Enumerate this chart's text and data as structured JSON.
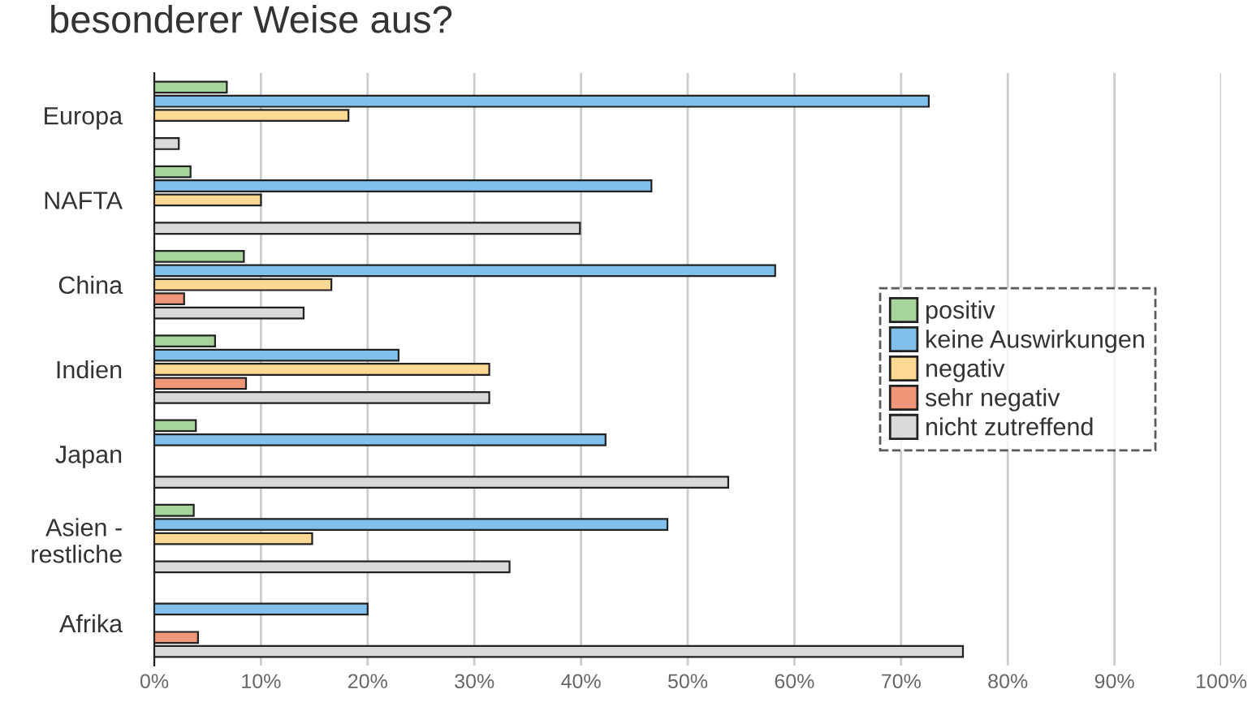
{
  "chart_data": {
    "type": "bar",
    "orientation": "horizontal",
    "title": "besonderer Weise aus?",
    "categories": [
      "Europa",
      "NAFTA",
      "China",
      "Indien",
      "Japan",
      "Asien -\nrestliche",
      "Afrika"
    ],
    "series": [
      {
        "name": "positiv",
        "color": "#a6d49a",
        "values": [
          6.8,
          3.4,
          8.4,
          5.7,
          3.9,
          3.7,
          null
        ]
      },
      {
        "name": "keine Auswirkungen",
        "color": "#80c0ea",
        "values": [
          72.6,
          46.6,
          58.2,
          22.9,
          42.3,
          48.1,
          20.0
        ]
      },
      {
        "name": "negativ",
        "color": "#fed993",
        "values": [
          18.2,
          10.0,
          16.6,
          31.4,
          null,
          14.8,
          null
        ]
      },
      {
        "name": "sehr negativ",
        "color": "#f0977a",
        "values": [
          null,
          null,
          2.8,
          8.6,
          null,
          null,
          4.1
        ]
      },
      {
        "name": "nicht zutreffend",
        "color": "#d9d9d9",
        "values": [
          2.3,
          39.9,
          14.0,
          31.4,
          53.8,
          33.3,
          75.8
        ]
      }
    ],
    "xlim": [
      0,
      100
    ],
    "xticks": [
      {
        "value": 0,
        "label": "0%"
      },
      {
        "value": 10,
        "label": "10%"
      },
      {
        "value": 20,
        "label": "20%"
      },
      {
        "value": 30,
        "label": "30%"
      },
      {
        "value": 40,
        "label": "40%"
      },
      {
        "value": 50,
        "label": "50%"
      },
      {
        "value": 60,
        "label": "60%"
      },
      {
        "value": 70,
        "label": "70%"
      },
      {
        "value": 80,
        "label": "80%"
      },
      {
        "value": 90,
        "label": "90%"
      },
      {
        "value": 100,
        "label": "100%"
      }
    ],
    "grid": "x",
    "legend": "center right"
  }
}
